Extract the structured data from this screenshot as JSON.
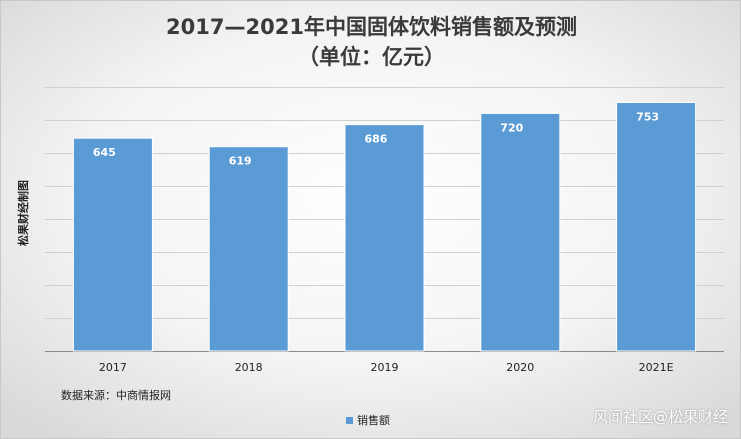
{
  "title_line1": "2017—2021年中国固体饮料销售额及预测",
  "title_line2": "（单位：亿元）",
  "ylabel": "松果财经制图",
  "source": "数据来源：中商情报网",
  "watermark": "风闻社区@松果财经",
  "colors": {
    "bar": "#5b9bd5",
    "grid": "#d0d0d0",
    "axis": "#8a8a8a"
  },
  "chart_data": {
    "type": "bar",
    "categories": [
      "2017",
      "2018",
      "2019",
      "2020",
      "2021E"
    ],
    "series": [
      {
        "name": "销售额",
        "values": [
          645,
          619,
          686,
          720,
          753
        ]
      }
    ],
    "ylim": [
      0,
      800
    ],
    "gridlines": 8,
    "grid": true,
    "legend_position": "bottom",
    "data_labels": true
  }
}
